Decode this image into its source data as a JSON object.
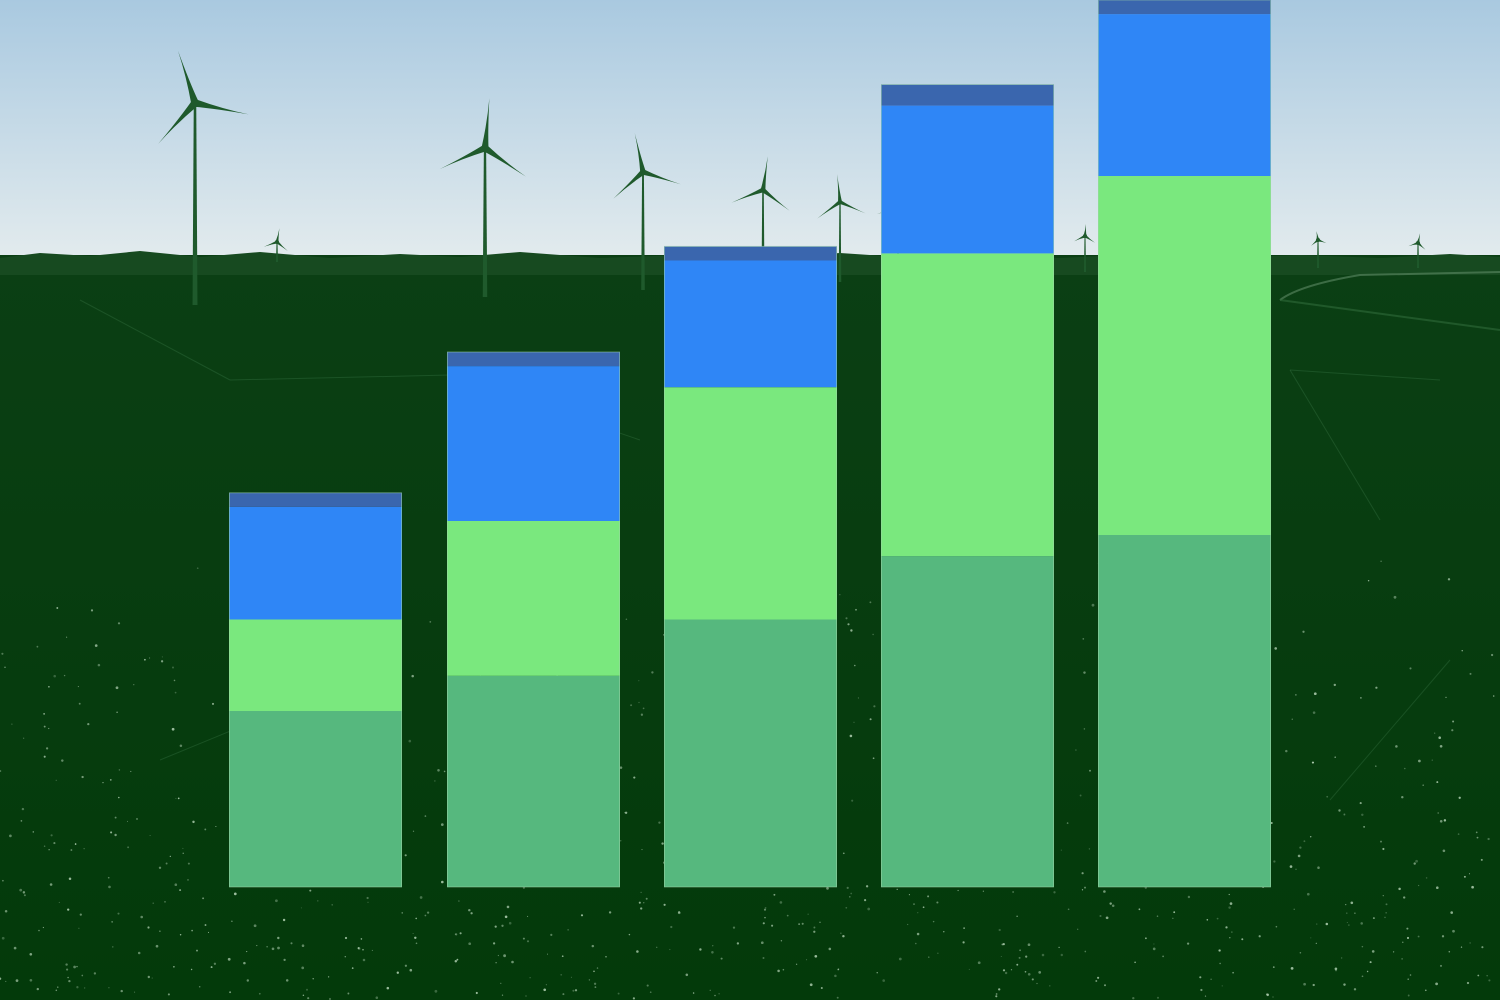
{
  "colors": {
    "sky_top": "#a9c9e0",
    "sky_horizon": "#e4ecee",
    "ground": "#003d0b",
    "silhouette": "#1f5a2c",
    "series": [
      "#56b87e",
      "#7ae87e",
      "#2f86f6",
      "#3a66ae"
    ]
  },
  "icons": {
    "turbine": "wind-turbine-icon"
  },
  "chart_data": {
    "type": "bar",
    "stacked": true,
    "categories": [
      "",
      "",
      "",
      "",
      ""
    ],
    "series": [
      {
        "values": [
          25,
          30,
          38,
          47,
          50
        ]
      },
      {
        "values": [
          13,
          22,
          33,
          43,
          51
        ]
      },
      {
        "values": [
          16,
          22,
          18,
          21,
          23
        ]
      },
      {
        "values": [
          2,
          2,
          2,
          3,
          2
        ]
      }
    ],
    "title": "",
    "xlabel": "",
    "ylabel": "",
    "ylim": [
      0,
      126
    ],
    "grid": false,
    "axes_visible": false,
    "legend": "none"
  }
}
